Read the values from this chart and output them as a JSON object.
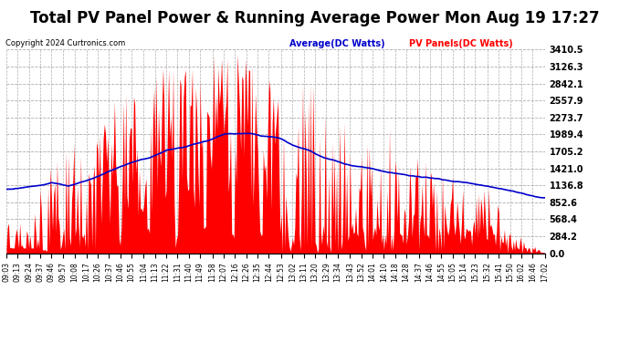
{
  "title": "Total PV Panel Power & Running Average Power Mon Aug 19 17:27",
  "copyright": "Copyright 2024 Curtronics.com",
  "legend_avg": "Average(DC Watts)",
  "legend_pv": "PV Panels(DC Watts)",
  "title_fontsize": 12,
  "ymin": 0.0,
  "ymax": 3410.5,
  "yticks": [
    0.0,
    284.2,
    568.4,
    852.6,
    1136.8,
    1421.0,
    1705.2,
    1989.4,
    2273.7,
    2557.9,
    2842.1,
    3126.3,
    3410.5
  ],
  "bar_color": "#ff0000",
  "avg_color": "#0000cc",
  "background_color": "#ffffff",
  "grid_color": "#999999",
  "x_labels": [
    "09:03",
    "09:13",
    "09:24",
    "09:37",
    "09:46",
    "09:57",
    "10:08",
    "10:17",
    "10:26",
    "10:37",
    "10:46",
    "10:55",
    "11:04",
    "11:13",
    "11:22",
    "11:31",
    "11:40",
    "11:49",
    "11:58",
    "12:07",
    "12:16",
    "12:26",
    "12:35",
    "12:44",
    "12:53",
    "13:02",
    "13:11",
    "13:20",
    "13:29",
    "13:34",
    "13:43",
    "13:52",
    "14:01",
    "14:10",
    "14:18",
    "14:28",
    "14:37",
    "14:46",
    "14:55",
    "15:05",
    "15:14",
    "15:23",
    "15:32",
    "15:41",
    "15:50",
    "16:02",
    "16:46",
    "17:02"
  ]
}
